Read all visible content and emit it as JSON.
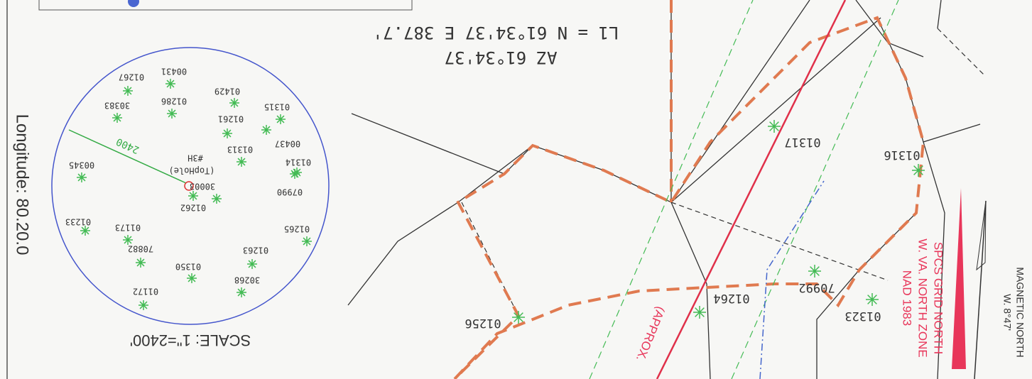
{
  "map": {
    "longitude": "Longitude: 80.20.0",
    "scale": "SCALE: 1\"=2400'",
    "radius_label": "2400",
    "bearing": "L1 = N 61°34'37 E 387.7'",
    "azimuth": "AZ 61°34'37",
    "top_hole_id": "#3H",
    "top_hole_note": "(TopHole)",
    "inset_wells": [
      "00431",
      "01267",
      "01429",
      "01286",
      "30383",
      "01315",
      "01261",
      "00437",
      "01313",
      "01314",
      "00345",
      "30003",
      "07990",
      "01262",
      "01233",
      "01173",
      "01265",
      "70882",
      "01263",
      "01350",
      "30268",
      "01172"
    ],
    "wells": [
      "01317",
      "01316",
      "01264",
      "70992",
      "01323",
      "01256"
    ],
    "grid_north": [
      "SPCS GRID NORTH",
      "W. VA. NORTH ZONE",
      "NAD 1983"
    ],
    "magnetic_north": [
      "MAGNETIC NORTH",
      "W. 8°47'"
    ],
    "approx": "(APPROX."
  }
}
